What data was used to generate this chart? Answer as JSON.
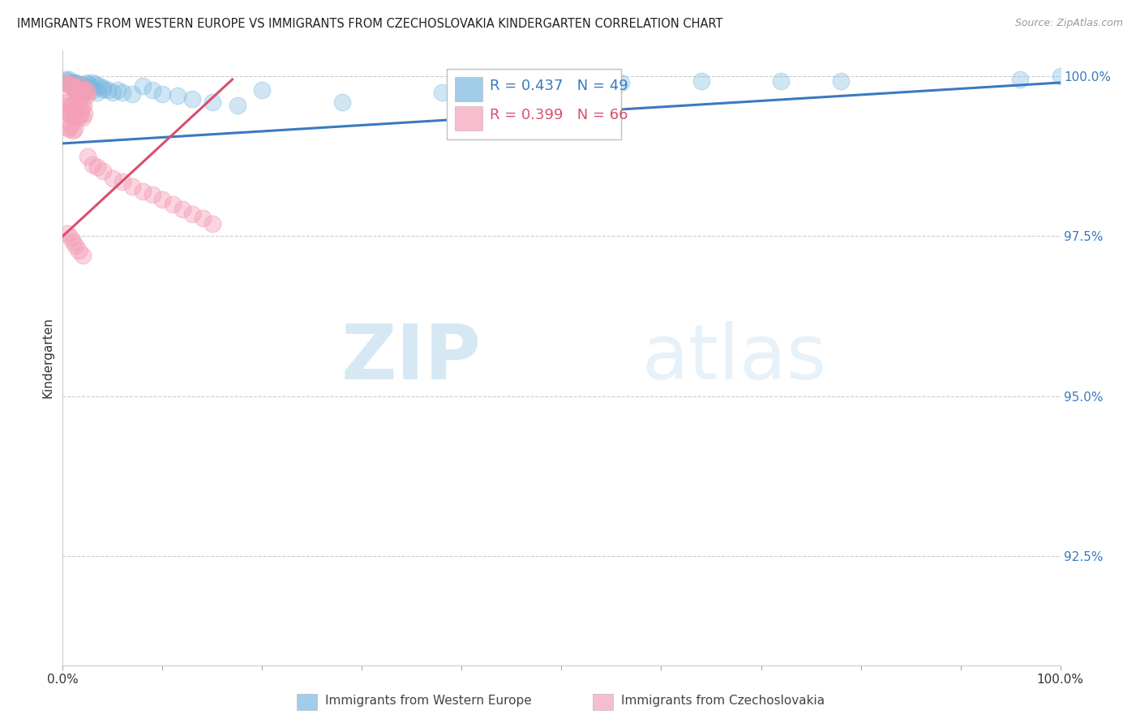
{
  "title": "IMMIGRANTS FROM WESTERN EUROPE VS IMMIGRANTS FROM CZECHOSLOVAKIA KINDERGARTEN CORRELATION CHART",
  "source": "Source: ZipAtlas.com",
  "ylabel": "Kindergarten",
  "ytick_labels": [
    "100.0%",
    "97.5%",
    "95.0%",
    "92.5%"
  ],
  "ytick_values": [
    1.0,
    0.975,
    0.95,
    0.925
  ],
  "xlim": [
    0.0,
    1.0
  ],
  "ylim": [
    0.908,
    1.004
  ],
  "legend_blue_label": "Immigrants from Western Europe",
  "legend_pink_label": "Immigrants from Czechoslovakia",
  "r_blue": "R = 0.437",
  "n_blue": "N = 49",
  "r_pink": "R = 0.399",
  "n_pink": "N = 66",
  "blue_color": "#7ab8e0",
  "pink_color": "#f4a0b8",
  "trendline_blue_color": "#3a7abf",
  "trendline_pink_color": "#d94f6e",
  "watermark_zip": "ZIP",
  "watermark_atlas": "atlas",
  "grid_color": "#cccccc",
  "bg_color": "#ffffff",
  "blue_x": [
    0.003,
    0.006,
    0.008,
    0.01,
    0.012,
    0.013,
    0.015,
    0.017,
    0.019,
    0.021,
    0.024,
    0.026,
    0.028,
    0.03,
    0.033,
    0.036,
    0.04,
    0.045,
    0.05,
    0.055,
    0.06,
    0.07,
    0.08,
    0.09,
    0.1,
    0.115,
    0.13,
    0.15,
    0.175,
    0.005,
    0.008,
    0.012,
    0.016,
    0.02,
    0.025,
    0.03,
    0.035,
    0.04,
    0.2,
    0.28,
    0.38,
    0.43,
    0.49,
    0.56,
    0.64,
    0.72,
    0.78,
    0.96,
    1.0
  ],
  "blue_y": [
    0.9995,
    0.9995,
    0.999,
    0.999,
    0.999,
    0.999,
    0.9988,
    0.9985,
    0.9988,
    0.9985,
    0.999,
    0.9988,
    0.9985,
    0.999,
    0.9988,
    0.9985,
    0.998,
    0.9978,
    0.9975,
    0.9978,
    0.9975,
    0.9972,
    0.9985,
    0.9978,
    0.9972,
    0.997,
    0.9965,
    0.996,
    0.9955,
    0.9992,
    0.9988,
    0.9985,
    0.9982,
    0.9978,
    0.9982,
    0.9978,
    0.9975,
    0.9982,
    0.9978,
    0.996,
    0.9975,
    0.999,
    0.9985,
    0.999,
    0.9992,
    0.9992,
    0.9992,
    0.9995,
    1.0
  ],
  "pink_x": [
    0.003,
    0.005,
    0.007,
    0.008,
    0.01,
    0.011,
    0.012,
    0.013,
    0.014,
    0.015,
    0.016,
    0.017,
    0.018,
    0.019,
    0.02,
    0.021,
    0.022,
    0.023,
    0.024,
    0.025,
    0.003,
    0.005,
    0.007,
    0.009,
    0.011,
    0.013,
    0.015,
    0.017,
    0.019,
    0.021,
    0.004,
    0.006,
    0.008,
    0.01,
    0.012,
    0.014,
    0.016,
    0.018,
    0.02,
    0.022,
    0.004,
    0.006,
    0.008,
    0.01,
    0.012,
    0.025,
    0.03,
    0.035,
    0.04,
    0.05,
    0.06,
    0.07,
    0.08,
    0.09,
    0.1,
    0.11,
    0.12,
    0.13,
    0.14,
    0.15,
    0.005,
    0.008,
    0.01,
    0.013,
    0.016,
    0.02
  ],
  "pink_y": [
    0.999,
    0.9988,
    0.9985,
    0.9988,
    0.9985,
    0.9982,
    0.998,
    0.9978,
    0.9975,
    0.9978,
    0.9975,
    0.998,
    0.9985,
    0.9975,
    0.9978,
    0.9972,
    0.9975,
    0.9978,
    0.997,
    0.9975,
    0.996,
    0.9958,
    0.9955,
    0.9952,
    0.9958,
    0.995,
    0.9955,
    0.9948,
    0.9952,
    0.9955,
    0.9945,
    0.9942,
    0.994,
    0.9938,
    0.9942,
    0.9938,
    0.9935,
    0.994,
    0.9936,
    0.9942,
    0.992,
    0.9918,
    0.9922,
    0.9915,
    0.9918,
    0.9875,
    0.9862,
    0.9858,
    0.9852,
    0.984,
    0.9835,
    0.9828,
    0.982,
    0.9815,
    0.9808,
    0.98,
    0.9792,
    0.9785,
    0.9778,
    0.977,
    0.9755,
    0.9748,
    0.9742,
    0.9735,
    0.9728,
    0.972
  ]
}
